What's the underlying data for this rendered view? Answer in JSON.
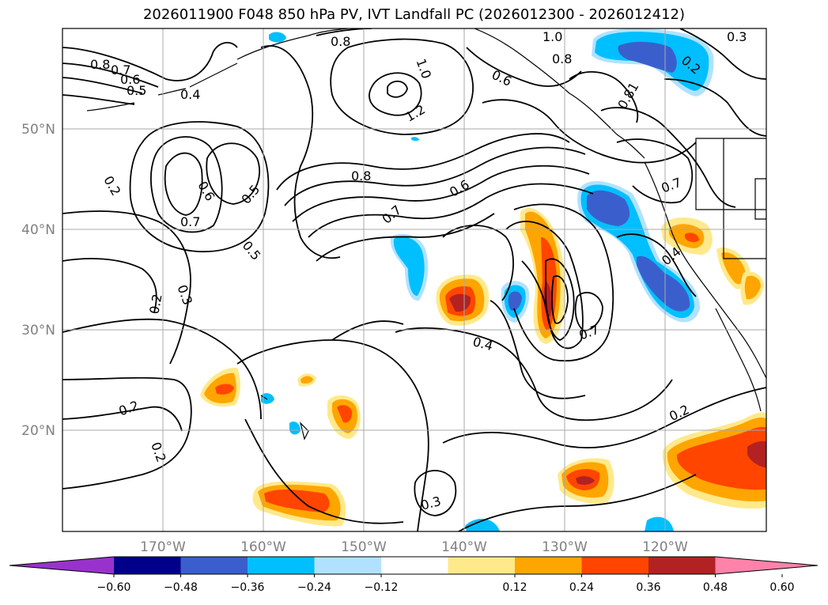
{
  "title": "2026011900 F048 850 hPa PV, IVT Landfall PC (2026012300 - 2026012412)",
  "map": {
    "lon_labels": [
      "170°W",
      "160°W",
      "150°W",
      "140°W",
      "130°W",
      "120°W"
    ],
    "lat_labels": [
      "50°N",
      "40°N",
      "30°N",
      "20°N"
    ],
    "contour_labels": [
      {
        "text": "0.8"
      },
      {
        "text": "0.7"
      },
      {
        "text": "0.6"
      },
      {
        "text": "0.5"
      },
      {
        "text": "0.4"
      },
      {
        "text": "1.0"
      },
      {
        "text": "1.2"
      },
      {
        "text": "0.8"
      },
      {
        "text": "0.6"
      },
      {
        "text": "1.0"
      },
      {
        "text": "0.8"
      },
      {
        "text": "0.3"
      },
      {
        "text": "0.2"
      },
      {
        "text": "0.81"
      },
      {
        "text": "0.2"
      },
      {
        "text": "0.6"
      },
      {
        "text": "0.5"
      },
      {
        "text": "0.7"
      },
      {
        "text": "0.8"
      },
      {
        "text": "0.7"
      },
      {
        "text": "0.6"
      },
      {
        "text": "0.5"
      },
      {
        "text": "0.2"
      },
      {
        "text": "0.3"
      },
      {
        "text": "0.4"
      },
      {
        "text": "0.7"
      },
      {
        "text": "0.7"
      },
      {
        "text": "0.4"
      },
      {
        "text": "0.2"
      },
      {
        "text": "0.2"
      },
      {
        "text": "0.2"
      },
      {
        "text": "0.3"
      }
    ]
  },
  "colorbar": {
    "colors": [
      "#9932cc",
      "#00008b",
      "#3a5fcd",
      "#00bfff",
      "#b0e2ff",
      "#ffffff",
      "#ffe98a",
      "#ffa500",
      "#ff4500",
      "#b22222",
      "#ff82ab"
    ],
    "tick_labels": [
      "−0.60",
      "−0.48",
      "−0.36",
      "−0.24",
      "−0.12",
      "0.12",
      "0.24",
      "0.36",
      "0.48",
      "0.60"
    ]
  }
}
